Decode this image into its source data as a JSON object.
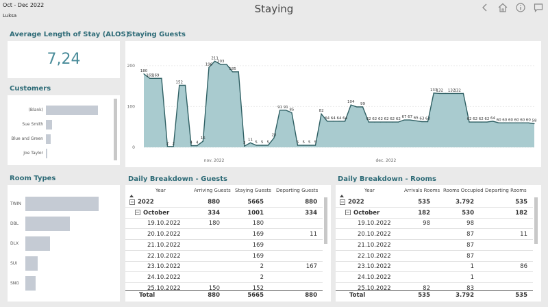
{
  "header": {
    "period": "Oct - Dec 2022",
    "hotel": "Luksa",
    "title": "Staying",
    "icons": [
      "back-icon",
      "home-icon",
      "info-icon",
      "comment-icon"
    ]
  },
  "alos": {
    "title": "Average Length of Stay (ALOS)",
    "value": "7,24"
  },
  "customers": {
    "title": "Customers",
    "items": [
      {
        "label": "(Blank)",
        "value": 1.0
      },
      {
        "label": "Sue Smith",
        "value": 0.12
      },
      {
        "label": "Blue and Green",
        "value": 0.09
      },
      {
        "label": "Joe Taylor",
        "value": 0.02
      }
    ]
  },
  "room_types": {
    "title": "Room Types",
    "items": [
      {
        "label": "TWIN",
        "value": 1.0
      },
      {
        "label": "DBL",
        "value": 0.61
      },
      {
        "label": "DLX",
        "value": 0.34
      },
      {
        "label": "SUI",
        "value": 0.17
      },
      {
        "label": "SNG",
        "value": 0.14
      }
    ]
  },
  "chart_data": {
    "type": "area",
    "title": "Staying Guests",
    "x_ticks": [
      "nov. 2022",
      "dec. 2022"
    ],
    "y_ticks": [
      0,
      100,
      200
    ],
    "ylim": [
      0,
      230
    ],
    "color": "#a9cbcf",
    "values": [
      180,
      169,
      169,
      169,
      2,
      2,
      152,
      152,
      4,
      4,
      15,
      196,
      211,
      203,
      203,
      185,
      185,
      3,
      11,
      5,
      5,
      5,
      23,
      91,
      91,
      85,
      5,
      5,
      5,
      5,
      82,
      64,
      64,
      64,
      64,
      104,
      99,
      99,
      62,
      62,
      62,
      62,
      62,
      62,
      67,
      67,
      65,
      63,
      63,
      133,
      132,
      132,
      132,
      132,
      132,
      62,
      62,
      62,
      62,
      64,
      60,
      60,
      60,
      60,
      60,
      60,
      58
    ],
    "labels": [
      "180",
      "169",
      "169",
      "",
      "2",
      "2",
      "152",
      "",
      "4",
      "4",
      "15",
      "196",
      "211",
      "203",
      "",
      "185",
      "",
      "3",
      "11",
      "5",
      "5",
      "5",
      "23",
      "91",
      "91",
      "85",
      "5",
      "5",
      "5",
      "5",
      "82",
      "64",
      "64",
      "64",
      "64",
      "104",
      "",
      "99",
      "62",
      "62",
      "62",
      "62",
      "62",
      "62",
      "67",
      "67",
      "65",
      "63",
      "63",
      "133",
      "132",
      "",
      "132",
      "132",
      "",
      "62",
      "62",
      "62",
      "62",
      "64",
      "60",
      "60",
      "60",
      "60",
      "60",
      "60",
      "58"
    ]
  },
  "guests_table": {
    "title": "Daily Breakdown - Guests",
    "columns": [
      "Year",
      "Arriving Guests",
      "Staying Guests",
      "Departing Guests"
    ],
    "rows": [
      {
        "label": "2022",
        "level": 0,
        "c1": "880",
        "c2": "5665",
        "c3": "880"
      },
      {
        "label": "October",
        "level": 1,
        "c1": "334",
        "c2": "1001",
        "c3": "334"
      },
      {
        "label": "19.10.2022",
        "level": 2,
        "c1": "180",
        "c2": "180",
        "c3": ""
      },
      {
        "label": "20.10.2022",
        "level": 2,
        "c1": "",
        "c2": "169",
        "c3": "11"
      },
      {
        "label": "21.10.2022",
        "level": 2,
        "c1": "",
        "c2": "169",
        "c3": ""
      },
      {
        "label": "22.10.2022",
        "level": 2,
        "c1": "",
        "c2": "169",
        "c3": ""
      },
      {
        "label": "23.10.2022",
        "level": 2,
        "c1": "",
        "c2": "2",
        "c3": "167"
      },
      {
        "label": "24.10.2022",
        "level": 2,
        "c1": "",
        "c2": "2",
        "c3": ""
      },
      {
        "label": "25.10.2022",
        "level": 2,
        "c1": "150",
        "c2": "152",
        "c3": ""
      }
    ],
    "total": {
      "label": "Total",
      "c1": "880",
      "c2": "5665",
      "c3": "880"
    }
  },
  "rooms_table": {
    "title": "Daily Breakdown - Rooms",
    "columns": [
      "Year",
      "Arrivals Rooms",
      "Rooms Occupied",
      "Departing Rooms"
    ],
    "rows": [
      {
        "label": "2022",
        "level": 0,
        "c1": "535",
        "c2": "3.792",
        "c3": "535"
      },
      {
        "label": "October",
        "level": 1,
        "c1": "182",
        "c2": "530",
        "c3": "182"
      },
      {
        "label": "19.10.2022",
        "level": 2,
        "c1": "98",
        "c2": "98",
        "c3": ""
      },
      {
        "label": "20.10.2022",
        "level": 2,
        "c1": "",
        "c2": "87",
        "c3": "11"
      },
      {
        "label": "21.10.2022",
        "level": 2,
        "c1": "",
        "c2": "87",
        "c3": ""
      },
      {
        "label": "22.10.2022",
        "level": 2,
        "c1": "",
        "c2": "87",
        "c3": ""
      },
      {
        "label": "23.10.2022",
        "level": 2,
        "c1": "",
        "c2": "1",
        "c3": "86"
      },
      {
        "label": "24.10.2022",
        "level": 2,
        "c1": "",
        "c2": "1",
        "c3": ""
      },
      {
        "label": "25.10.2022",
        "level": 2,
        "c1": "82",
        "c2": "83",
        "c3": ""
      }
    ],
    "total": {
      "label": "Total",
      "c1": "535",
      "c2": "3.792",
      "c3": "535"
    }
  }
}
